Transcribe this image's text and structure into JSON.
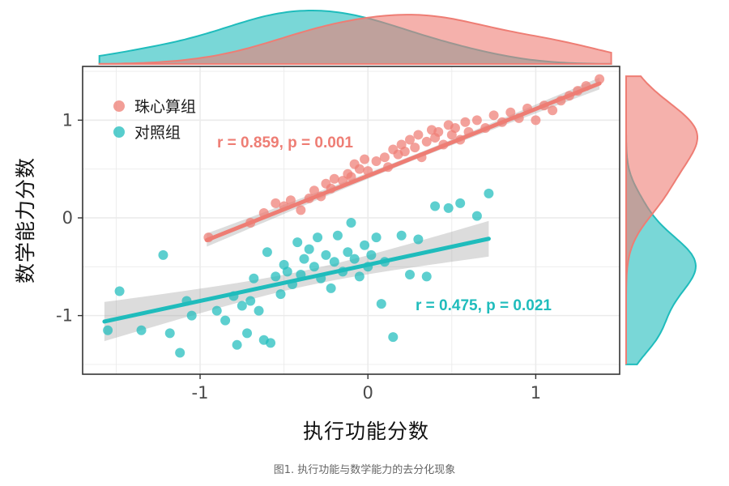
{
  "caption": "图1. 执行功能与数学能力的去分化现象",
  "chart_data": {
    "type": "scatter",
    "xlabel": "执行功能分数",
    "ylabel": "数学能力分数",
    "xlim": [
      -1.7,
      1.5
    ],
    "ylim": [
      -1.6,
      1.55
    ],
    "xticks": [
      -1,
      0,
      1
    ],
    "yticks": [
      -1,
      0,
      1
    ],
    "xtick_labels": [
      "-1",
      "0",
      "1"
    ],
    "ytick_labels": [
      "-1",
      "0",
      "1"
    ],
    "grid": true,
    "legend_position": "top-left",
    "marginal_density": true,
    "series": [
      {
        "name": "珠心算组",
        "color": "#ee7d74",
        "r_label": "r = 0.859, p = 0.001",
        "fit": {
          "slope": 0.685,
          "intercept": 0.43,
          "x_range": [
            -0.96,
            1.38
          ]
        },
        "x": [
          -0.95,
          -0.7,
          -0.62,
          -0.55,
          -0.5,
          -0.46,
          -0.4,
          -0.35,
          -0.32,
          -0.28,
          -0.25,
          -0.22,
          -0.2,
          -0.15,
          -0.12,
          -0.1,
          -0.08,
          -0.05,
          -0.02,
          0.0,
          0.05,
          0.1,
          0.12,
          0.15,
          0.18,
          0.2,
          0.22,
          0.25,
          0.28,
          0.3,
          0.32,
          0.35,
          0.38,
          0.4,
          0.42,
          0.45,
          0.48,
          0.5,
          0.52,
          0.55,
          0.58,
          0.6,
          0.65,
          0.7,
          0.75,
          0.8,
          0.85,
          0.9,
          0.95,
          1.0,
          1.05,
          1.1,
          1.15,
          1.2,
          1.25,
          1.3,
          1.38
        ],
        "y": [
          -0.2,
          -0.05,
          0.05,
          0.15,
          0.12,
          0.18,
          0.08,
          0.2,
          0.28,
          0.22,
          0.35,
          0.3,
          0.4,
          0.38,
          0.45,
          0.42,
          0.55,
          0.5,
          0.6,
          0.48,
          0.58,
          0.62,
          0.52,
          0.7,
          0.65,
          0.75,
          0.68,
          0.8,
          0.72,
          0.85,
          0.62,
          0.78,
          0.9,
          0.82,
          0.88,
          0.75,
          0.95,
          0.85,
          0.92,
          0.8,
          0.98,
          0.88,
          1.0,
          0.92,
          1.05,
          0.98,
          1.08,
          1.02,
          1.12,
          1.0,
          1.15,
          1.1,
          1.2,
          1.25,
          1.3,
          1.35,
          1.42
        ]
      },
      {
        "name": "对照组",
        "color": "#1fbcbc",
        "r_label": "r = 0.475, p = 0.021",
        "fit": {
          "slope": 0.37,
          "intercept": -0.48,
          "x_range": [
            -1.57,
            0.72
          ]
        },
        "x": [
          -1.55,
          -1.48,
          -1.35,
          -1.22,
          -1.18,
          -1.12,
          -1.08,
          -1.05,
          -0.9,
          -0.85,
          -0.8,
          -0.78,
          -0.75,
          -0.72,
          -0.7,
          -0.68,
          -0.65,
          -0.62,
          -0.6,
          -0.58,
          -0.55,
          -0.52,
          -0.5,
          -0.48,
          -0.45,
          -0.42,
          -0.4,
          -0.38,
          -0.35,
          -0.32,
          -0.3,
          -0.28,
          -0.25,
          -0.22,
          -0.2,
          -0.18,
          -0.15,
          -0.12,
          -0.1,
          -0.08,
          -0.05,
          -0.02,
          0.0,
          0.02,
          0.05,
          0.08,
          0.1,
          0.15,
          0.2,
          0.25,
          0.3,
          0.35,
          0.4,
          0.48,
          0.55,
          0.65,
          0.72
        ],
        "y": [
          -1.15,
          -0.75,
          -1.15,
          -0.38,
          -1.18,
          -1.38,
          -0.85,
          -1.0,
          -0.95,
          -1.05,
          -0.8,
          -1.3,
          -0.9,
          -1.18,
          -0.85,
          -0.62,
          -0.95,
          -1.25,
          -0.35,
          -1.28,
          -0.6,
          -0.78,
          -0.48,
          -0.55,
          -0.68,
          -0.25,
          -0.58,
          -0.42,
          -0.32,
          -0.5,
          -0.2,
          -0.62,
          -0.38,
          -0.72,
          -0.45,
          -0.18,
          -0.55,
          -0.35,
          -0.05,
          -0.42,
          -0.6,
          -0.28,
          -0.5,
          -0.38,
          -0.2,
          -0.88,
          -0.45,
          -1.22,
          -0.18,
          -0.58,
          -0.22,
          -0.6,
          0.12,
          0.1,
          0.15,
          0.02,
          0.25
        ]
      }
    ]
  }
}
